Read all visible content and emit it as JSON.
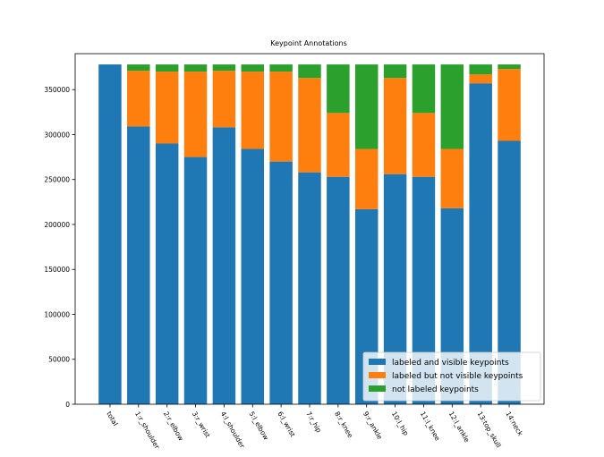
{
  "chart_data": {
    "type": "bar",
    "stacked": true,
    "title": "Keypoint Annotations",
    "xlabel": "",
    "ylabel": "",
    "ylim": [
      0,
      390000
    ],
    "yticks": [
      0,
      50000,
      100000,
      150000,
      200000,
      250000,
      300000,
      350000
    ],
    "grid": false,
    "legend_position": "lower-right",
    "categories": [
      "total",
      "1:r_shoulder",
      "2:r_elbow",
      "3:r_wrist",
      "4:l_shoulder",
      "5:l_elbow",
      "6:l_wrist",
      "7:r_hip",
      "8:r_knee",
      "9:r_ankle",
      "10:l_hip",
      "11:l_knee",
      "12:l_ankle",
      "13:top_skull",
      "14:neck"
    ],
    "series": [
      {
        "name": "labeled and visible keypoints",
        "color": "#1f77b4",
        "values": [
          378000,
          309000,
          290000,
          275000,
          308000,
          284000,
          270000,
          258000,
          253000,
          217000,
          256000,
          253000,
          218000,
          357000,
          293000
        ]
      },
      {
        "name": "labeled but not visible keypoints",
        "color": "#ff7f0e",
        "values": [
          0,
          62000,
          80000,
          95000,
          63000,
          86000,
          100000,
          105000,
          71000,
          67000,
          107000,
          71000,
          66000,
          10000,
          80000
        ]
      },
      {
        "name": "not labeled keypoints",
        "color": "#2ca02c",
        "values": [
          0,
          7000,
          8000,
          8000,
          7000,
          8000,
          8000,
          15000,
          54000,
          94000,
          15000,
          54000,
          94000,
          11000,
          5000
        ]
      }
    ]
  }
}
